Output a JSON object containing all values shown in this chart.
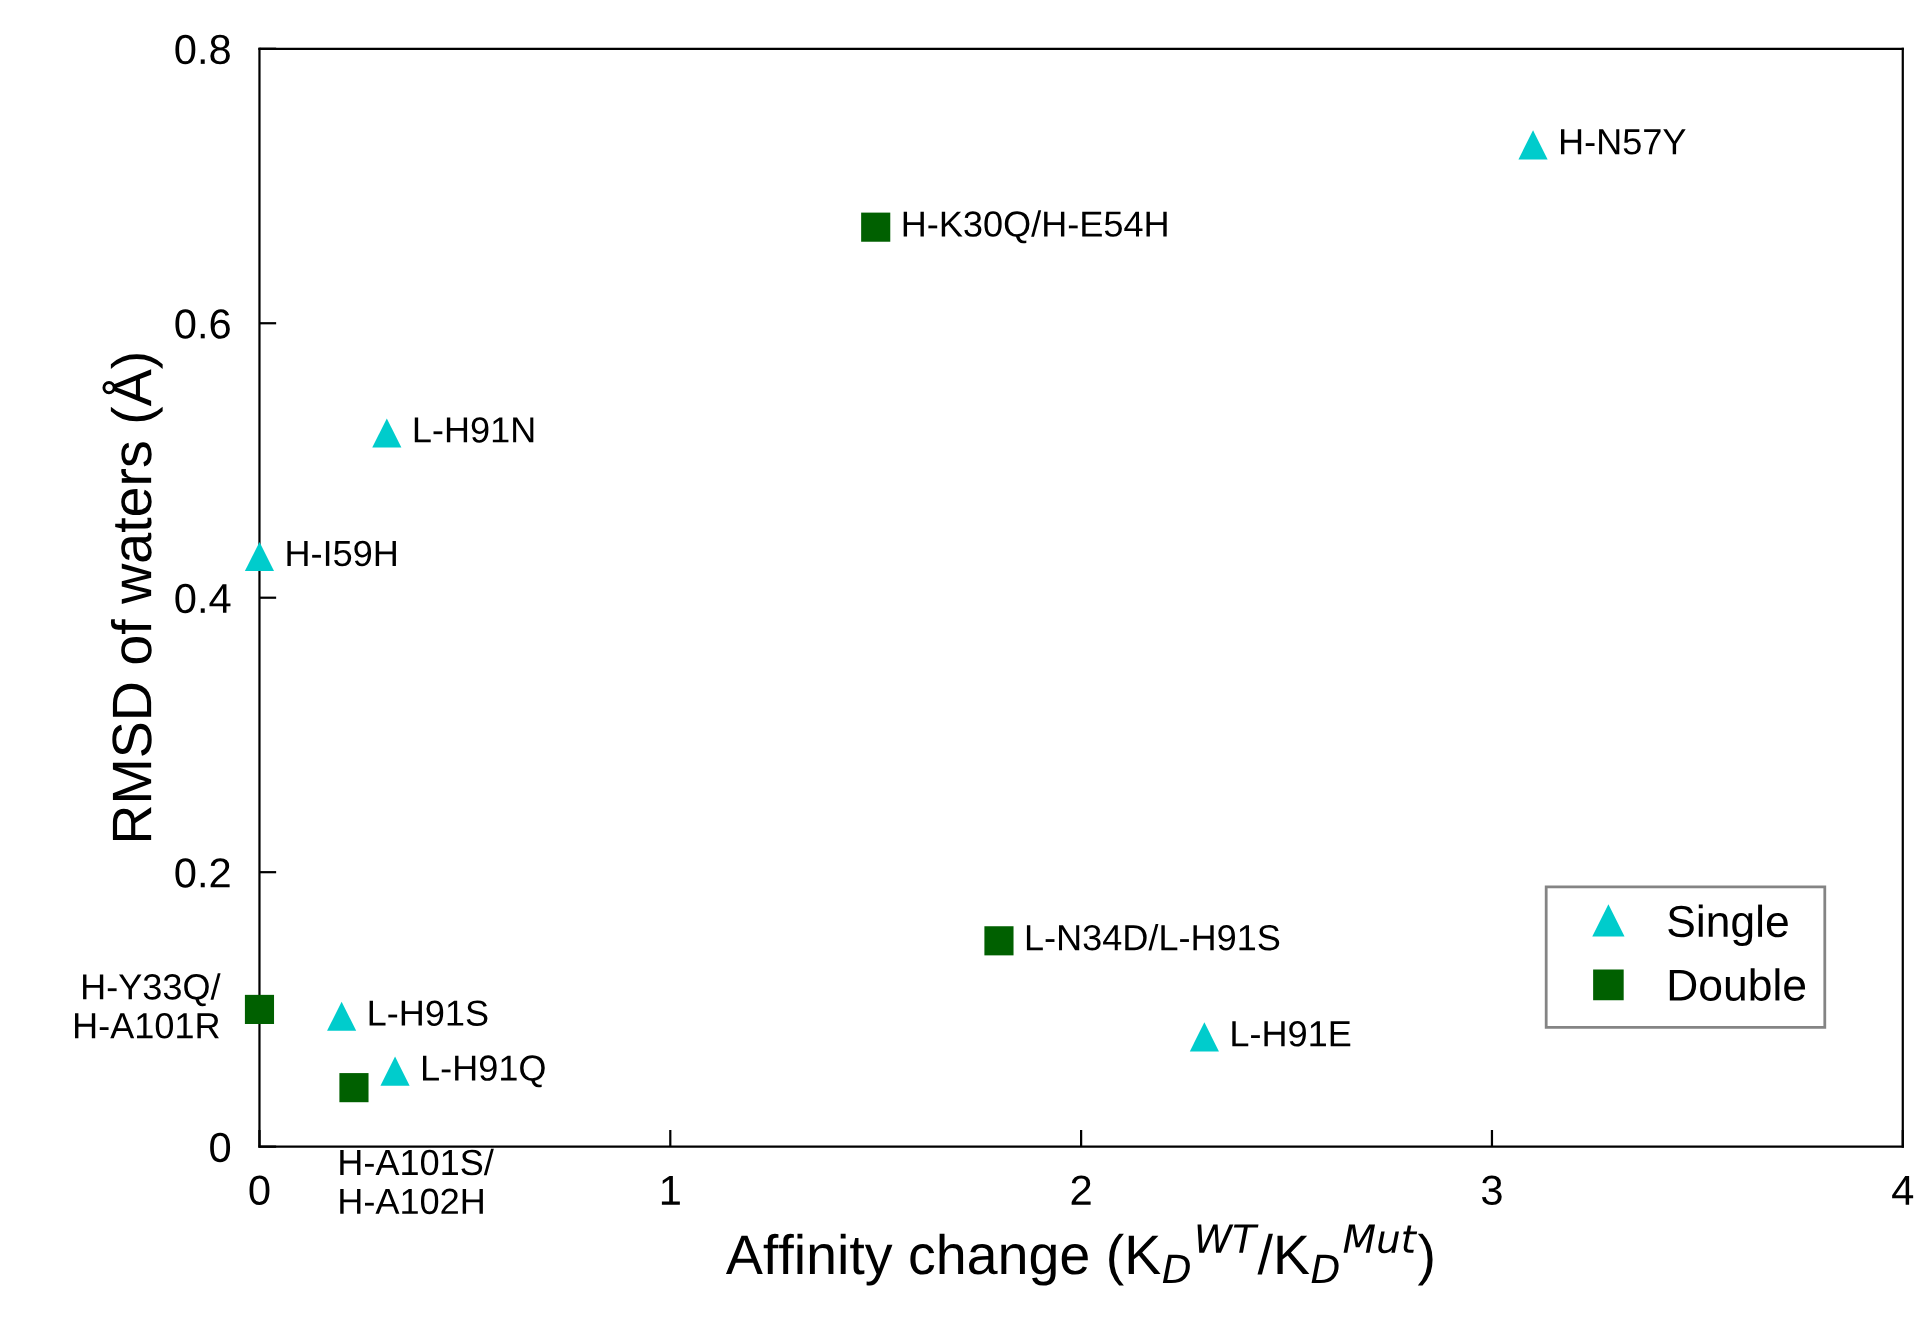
{
  "chart_data": {
    "type": "scatter",
    "xlabel": "Affinity change (K$_{D}$$^{WT}$/K$_{D}$$^{Mut}$)",
    "ylabel": "RMSD of waters (Å)",
    "xlim": [
      0,
      4
    ],
    "xticks": [
      0,
      1,
      2,
      3,
      4
    ],
    "ylim": [
      0,
      0.8
    ],
    "yticks": [
      0,
      0.2,
      0.4,
      0.6,
      0.8
    ],
    "grid": false,
    "legend": "bottom right",
    "series": [
      {
        "name": "Single",
        "color": "#00cccc",
        "marker": "triangle",
        "x": [
          3.1,
          0.31,
          0,
          0.2,
          0.33,
          2.3
        ],
        "values": [
          0.73,
          0.52,
          0.43,
          0.095,
          0.055,
          0.08
        ]
      },
      {
        "name": "Double",
        "color": "#006000",
        "marker": "square",
        "x": [
          1.5,
          1.8,
          0,
          0.23
        ],
        "values": [
          0.67,
          0.15,
          0.1,
          0.043
        ]
      }
    ],
    "annotations": [
      {
        "text": "H-N57Y",
        "x": 3.1,
        "y": 0.73
      },
      {
        "text": "L-H91N",
        "x": 0.31,
        "y": 0.52
      },
      {
        "text": "H-I59H",
        "x": 0,
        "y": 0.43
      },
      {
        "text": "L-H91S",
        "x": 0.2,
        "y": 0.095
      },
      {
        "text": "L-H91Q",
        "x": 0.33,
        "y": 0.055
      },
      {
        "text": "L-H91E",
        "x": 2.3,
        "y": 0.08
      },
      {
        "text": "H-K30Q/H-E54H",
        "x": 1.5,
        "y": 0.67
      },
      {
        "text": "L-N34D/L-H91S",
        "x": 1.8,
        "y": 0.15
      },
      {
        "text": "H-Y33Q/\nH-A101R",
        "x": 0,
        "y": 0.1
      },
      {
        "text": "H-A101S/\nH-A102H",
        "x": 0.23,
        "y": 0.043
      }
    ]
  }
}
